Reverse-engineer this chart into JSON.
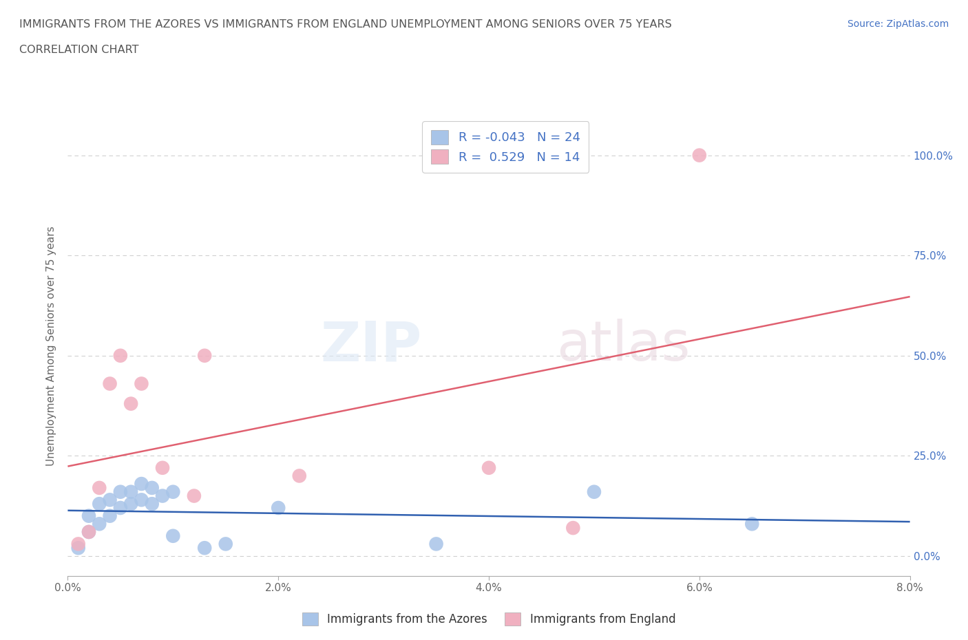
{
  "title_line1": "IMMIGRANTS FROM THE AZORES VS IMMIGRANTS FROM ENGLAND UNEMPLOYMENT AMONG SENIORS OVER 75 YEARS",
  "title_line2": "CORRELATION CHART",
  "source_text": "Source: ZipAtlas.com",
  "ylabel": "Unemployment Among Seniors over 75 years",
  "watermark_zip": "ZIP",
  "watermark_atlas": "atlas",
  "xlim": [
    0.0,
    0.08
  ],
  "ylim": [
    -0.05,
    1.1
  ],
  "xticks": [
    0.0,
    0.02,
    0.04,
    0.06,
    0.08
  ],
  "xtick_labels": [
    "0.0%",
    "2.0%",
    "4.0%",
    "6.0%",
    "8.0%"
  ],
  "ytick_labels_right": [
    "0.0%",
    "25.0%",
    "50.0%",
    "75.0%",
    "100.0%"
  ],
  "yticks_right": [
    0.0,
    0.25,
    0.5,
    0.75,
    1.0
  ],
  "grid_color": "#d0d0d0",
  "background_color": "#ffffff",
  "azores_color": "#a8c4e8",
  "england_color": "#f0b0c0",
  "azores_line_color": "#3060b0",
  "england_line_color": "#e06070",
  "legend_r_azores": "-0.043",
  "legend_n_azores": "24",
  "legend_r_england": "0.529",
  "legend_n_england": "14",
  "legend_label_azores": "Immigrants from the Azores",
  "legend_label_england": "Immigrants from England",
  "azores_x": [
    0.001,
    0.002,
    0.002,
    0.003,
    0.003,
    0.004,
    0.004,
    0.005,
    0.005,
    0.006,
    0.006,
    0.007,
    0.007,
    0.008,
    0.008,
    0.009,
    0.01,
    0.01,
    0.013,
    0.015,
    0.02,
    0.035,
    0.05,
    0.065
  ],
  "azores_y": [
    0.02,
    0.06,
    0.1,
    0.08,
    0.13,
    0.1,
    0.14,
    0.12,
    0.16,
    0.13,
    0.16,
    0.14,
    0.18,
    0.13,
    0.17,
    0.15,
    0.16,
    0.05,
    0.02,
    0.03,
    0.12,
    0.03,
    0.16,
    0.08
  ],
  "england_x": [
    0.001,
    0.002,
    0.003,
    0.004,
    0.005,
    0.006,
    0.007,
    0.009,
    0.012,
    0.013,
    0.022,
    0.04,
    0.048,
    0.06
  ],
  "england_y": [
    0.03,
    0.06,
    0.17,
    0.43,
    0.5,
    0.38,
    0.43,
    0.22,
    0.15,
    0.5,
    0.2,
    0.22,
    0.07,
    1.0
  ]
}
